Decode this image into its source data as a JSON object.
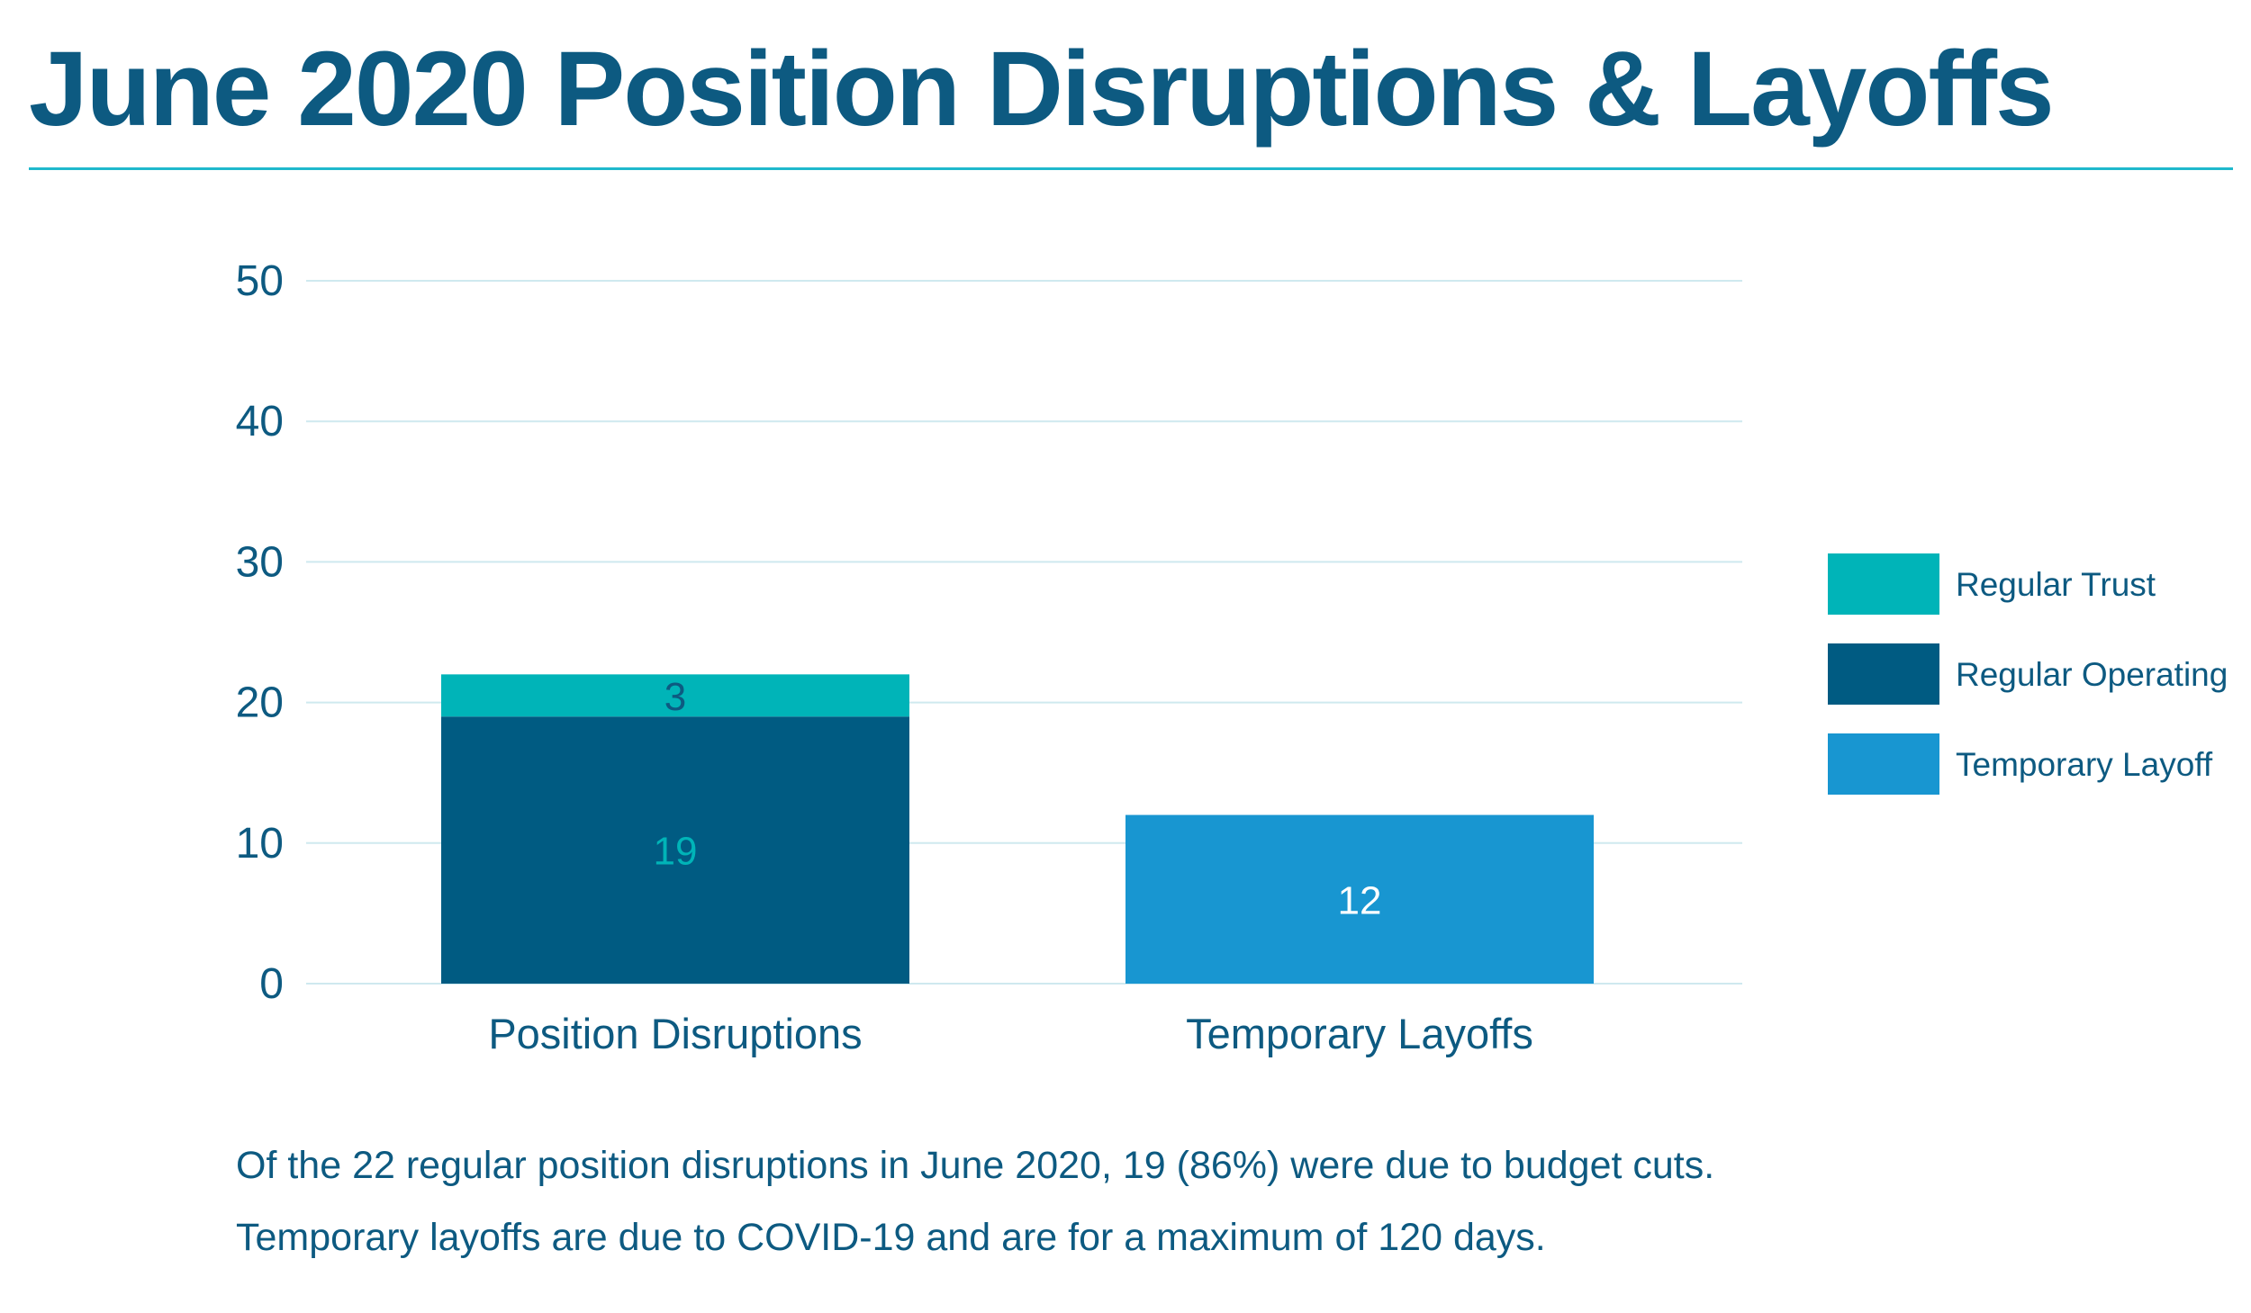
{
  "title": "June 2020 Position Disruptions & Layoffs",
  "colors": {
    "title": "#0d5a81",
    "rule": "#1fb8cc",
    "grid": "#cfe9ef",
    "axis_text": "#0d5a81",
    "regular_trust": "#00b4b8",
    "regular_operating": "#005b82",
    "temporary_layoff": "#1896d1"
  },
  "chart_data": {
    "type": "bar",
    "stacked": true,
    "categories": [
      "Position Disruptions",
      "Temporary Layoffs"
    ],
    "series": [
      {
        "name": "Regular Operating",
        "values": [
          19,
          null
        ],
        "labels": [
          "19",
          ""
        ],
        "color": "#005b82",
        "label_color": "#00b4b8"
      },
      {
        "name": "Regular Trust",
        "values": [
          3,
          null
        ],
        "labels": [
          "3",
          ""
        ],
        "color": "#00b4b8",
        "label_color": "#0d5a81"
      },
      {
        "name": "Temporary Layoff",
        "values": [
          null,
          12
        ],
        "labels": [
          "",
          "12"
        ],
        "color": "#1896d1",
        "label_color": "#ffffff"
      }
    ],
    "legend": [
      "Regular Trust",
      "Regular Operating",
      "Temporary Layoff"
    ],
    "legend_position": "right",
    "ylim": [
      0,
      50
    ],
    "yticks": [
      "0",
      "10",
      "20",
      "30",
      "40",
      "50"
    ],
    "grid": true,
    "xlabel": "",
    "ylabel": ""
  },
  "notes": [
    "Of the 22 regular position disruptions in June 2020, 19 (86%) were due to budget cuts.",
    "Temporary layoffs are due to COVID-19 and are for a maximum of 120 days."
  ]
}
